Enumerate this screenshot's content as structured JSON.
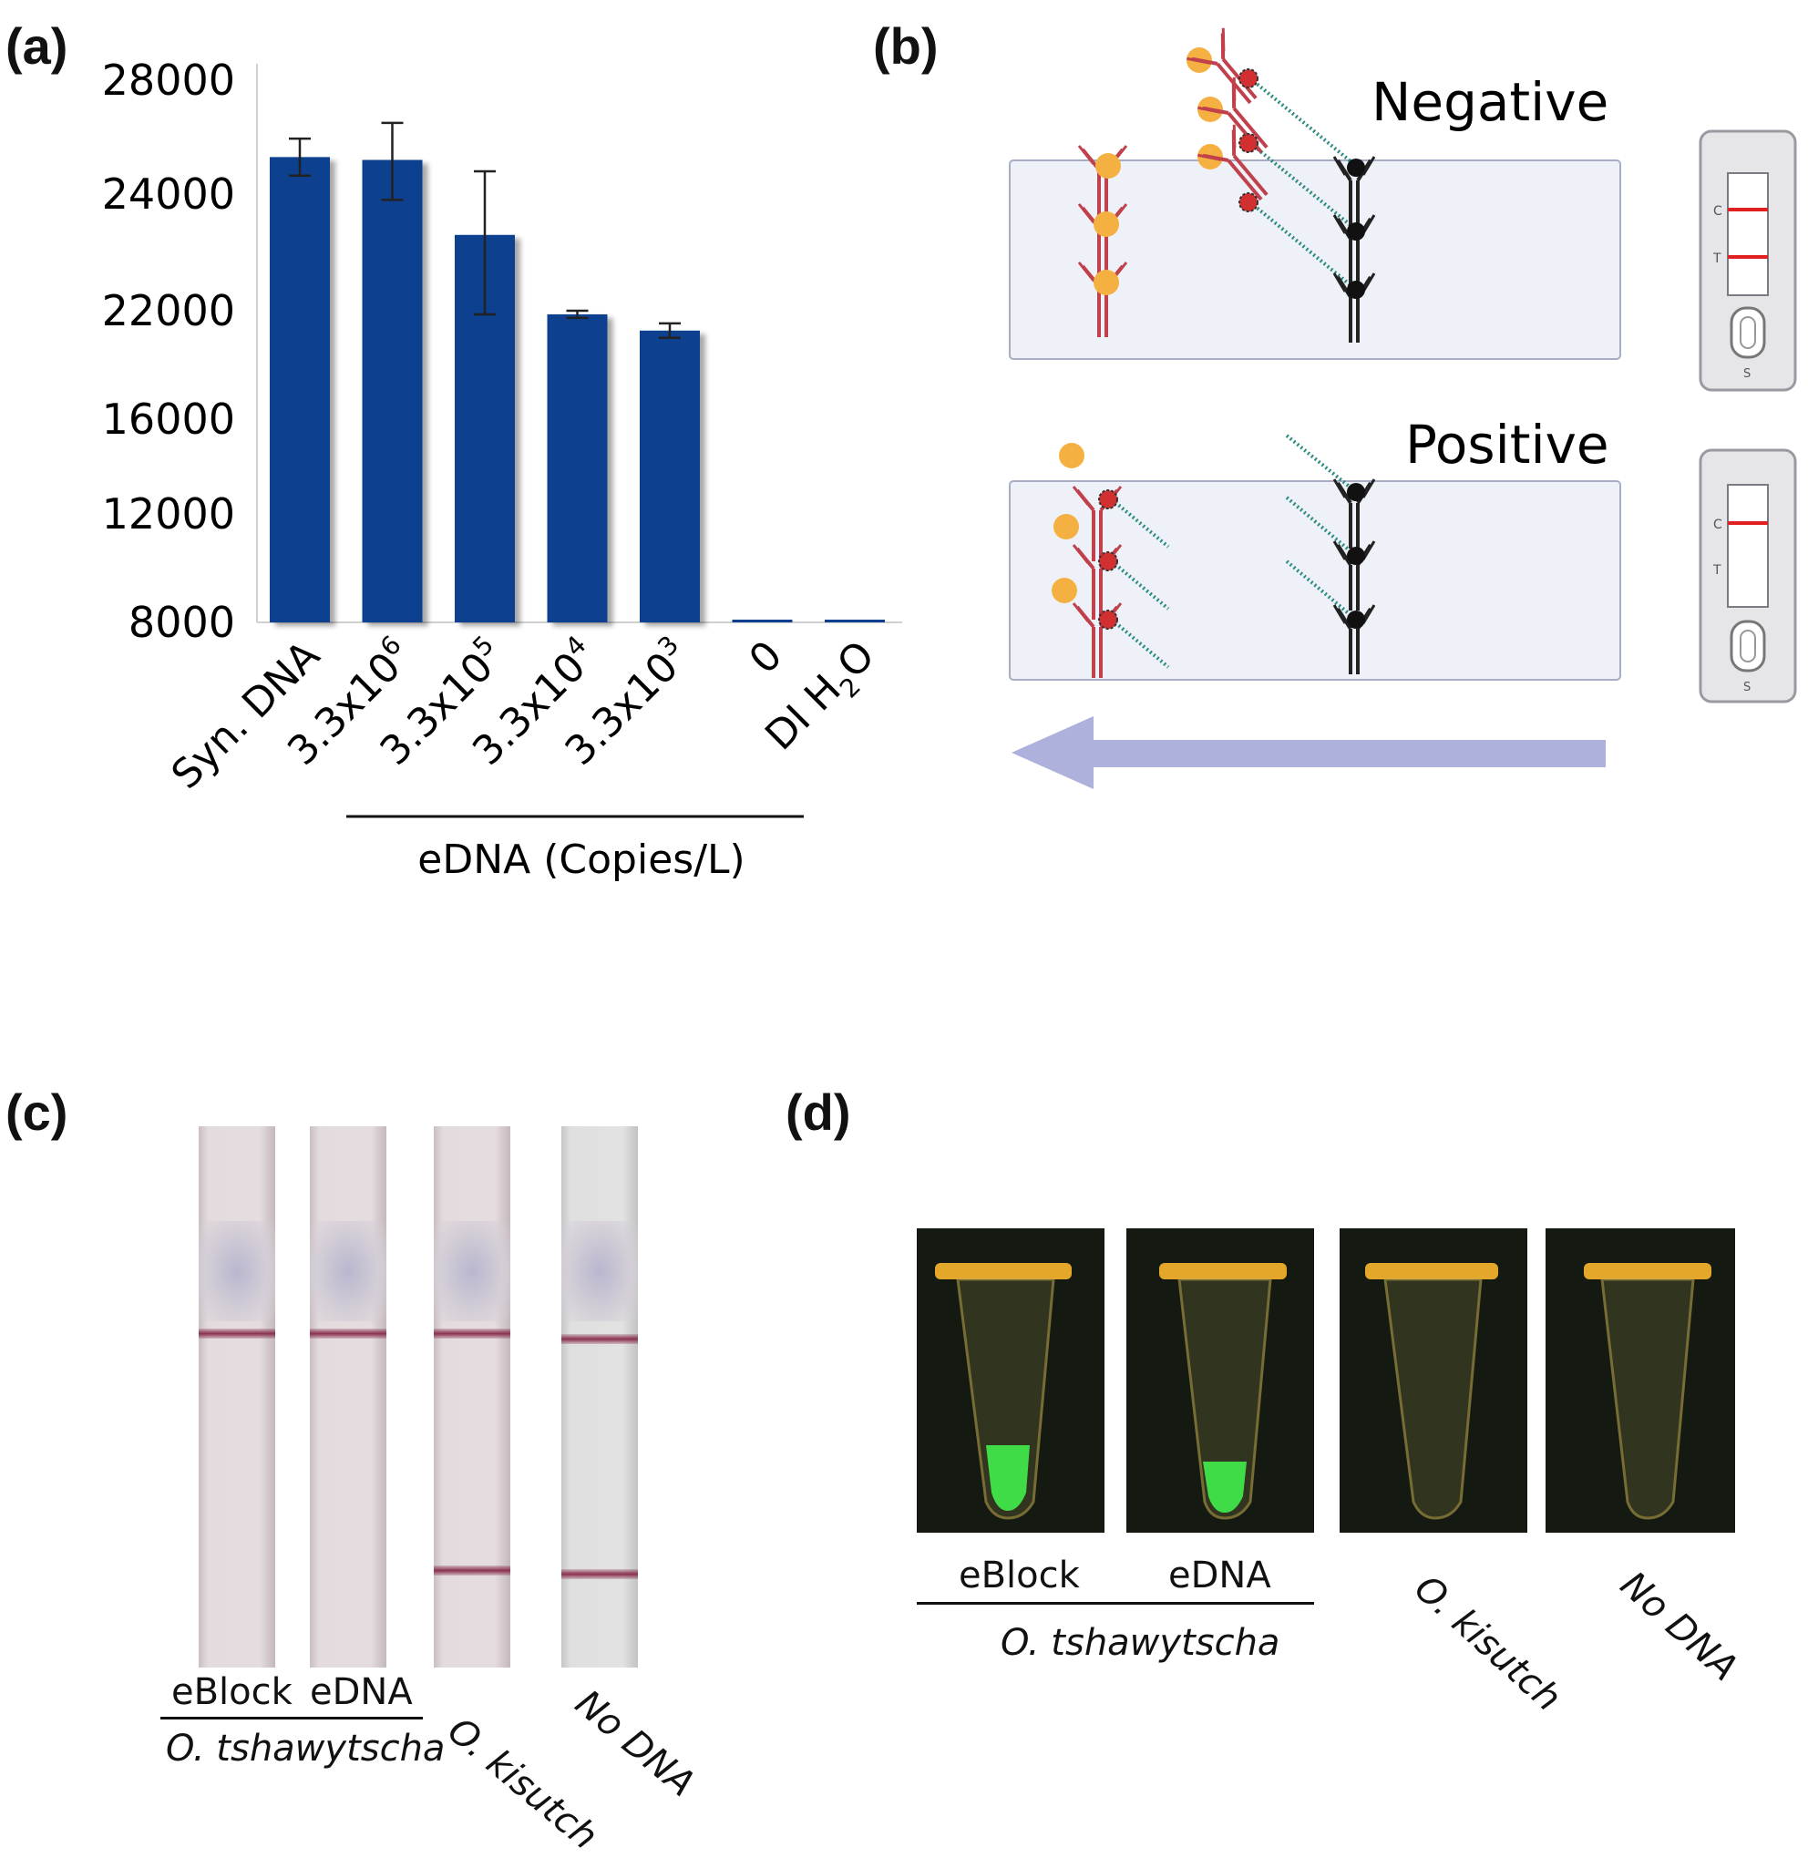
{
  "panels": {
    "a": "(a)",
    "b": "(b)",
    "c": "(c)",
    "d": "(d)"
  },
  "chart_data": {
    "type": "bar",
    "categories": [
      "Syn. DNA",
      "3.3x10^6",
      "3.3x10^5",
      "3.3x10^4",
      "3.3x10^3",
      "0",
      "DI H2O"
    ],
    "values": [
      25300,
      25200,
      23300,
      21800,
      20900,
      8000,
      8000
    ],
    "errors": [
      650,
      1300,
      1500,
      200,
      400,
      0,
      0
    ],
    "y_ticks": [
      "28000",
      "24000",
      "22000",
      "16000",
      "12000",
      "8000"
    ],
    "xlabel": "eDNA (Copies/L)",
    "bar_color": "#0d3f8f"
  },
  "diagram": {
    "negative_label": "Negative",
    "positive_label": "Positive",
    "strip_c_label": "C",
    "strip_t_label": "T",
    "strip_s_label": "S",
    "line_color": "#e02020",
    "arrow_color": "#aeb1dc"
  },
  "strips": {
    "labels": [
      "eBlock",
      "eDNA",
      "O. kisutch",
      "No DNA"
    ],
    "group_label": "O. tshawytscha"
  },
  "tubes": {
    "labels": [
      "eBlock",
      "eDNA",
      "O. kisutch",
      "No DNA"
    ],
    "group_label": "O. tshawytscha"
  }
}
